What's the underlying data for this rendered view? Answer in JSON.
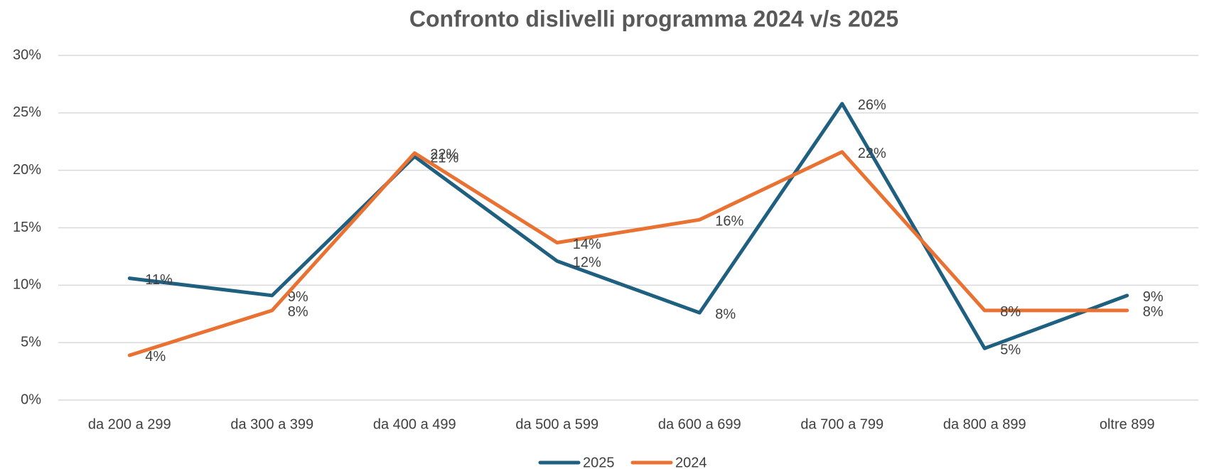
{
  "chart_data": {
    "type": "line",
    "title": "Confronto dislivelli programma 2024 v/s 2025",
    "categories": [
      "da 200 a 299",
      "da 300 a 399",
      "da 400 a 499",
      "da 500 a 599",
      "da 600 a 699",
      "da 700 a 799",
      "da 800 a 899",
      "oltre 899"
    ],
    "series": [
      {
        "name": "2025",
        "color": "#1f5f7f",
        "values": [
          10.6,
          9.1,
          21.2,
          12.1,
          7.6,
          25.8,
          4.5,
          9.1
        ],
        "value_labels": [
          "11%",
          "9%",
          "21%",
          "12%",
          "8%",
          "26%",
          "5%",
          "9%"
        ]
      },
      {
        "name": "2024",
        "color": "#e97132",
        "values": [
          3.9,
          7.8,
          21.5,
          13.7,
          15.7,
          21.6,
          7.8,
          7.8
        ],
        "value_labels": [
          "4%",
          "8%",
          "22%",
          "14%",
          "16%",
          "22%",
          "8%",
          "8%"
        ]
      }
    ],
    "ylim": [
      0,
      30
    ],
    "yticks": [
      {
        "value": 0,
        "label": "0%"
      },
      {
        "value": 5,
        "label": "5%"
      },
      {
        "value": 10,
        "label": "10%"
      },
      {
        "value": 15,
        "label": "15%"
      },
      {
        "value": 20,
        "label": "20%"
      },
      {
        "value": 25,
        "label": "25%"
      },
      {
        "value": 30,
        "label": "30%"
      }
    ],
    "grid": true,
    "legend": "bottom"
  }
}
